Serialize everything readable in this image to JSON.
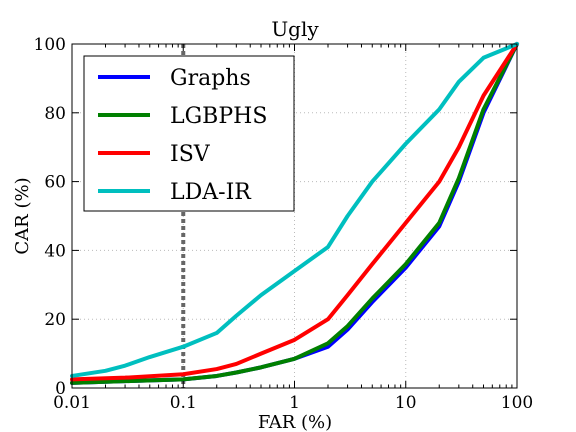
{
  "chart_data": {
    "type": "line",
    "title": "Ugly",
    "xlabel": "FAR (%)",
    "ylabel": "CAR (%)",
    "xscale": "log",
    "xlim": [
      0.01,
      100
    ],
    "ylim": [
      0,
      100
    ],
    "x_ticks": [
      0.01,
      0.1,
      1,
      10,
      100
    ],
    "x_tick_labels": [
      "0.01",
      "0.1",
      "1",
      "10",
      "100"
    ],
    "y_ticks": [
      0,
      20,
      40,
      60,
      80,
      100
    ],
    "y_tick_labels": [
      "0",
      "20",
      "40",
      "60",
      "80",
      "100"
    ],
    "grid": true,
    "legend_position": "top-left",
    "vline": {
      "x": 0.1,
      "style": "dashed",
      "color": "#666666"
    },
    "series": [
      {
        "name": "Graphs",
        "color": "#0000ff",
        "points": [
          [
            0.01,
            1.5
          ],
          [
            0.03,
            2
          ],
          [
            0.1,
            2.5
          ],
          [
            0.2,
            3.5
          ],
          [
            0.3,
            4.5
          ],
          [
            0.5,
            6
          ],
          [
            1,
            8.5
          ],
          [
            2,
            12
          ],
          [
            3,
            17
          ],
          [
            5,
            25
          ],
          [
            10,
            35
          ],
          [
            20,
            47
          ],
          [
            30,
            60
          ],
          [
            50,
            80
          ],
          [
            100,
            100
          ]
        ]
      },
      {
        "name": "LGBPHS",
        "color": "#008000",
        "points": [
          [
            0.01,
            1.5
          ],
          [
            0.03,
            2
          ],
          [
            0.1,
            2.5
          ],
          [
            0.2,
            3.5
          ],
          [
            0.3,
            4.5
          ],
          [
            0.5,
            6
          ],
          [
            1,
            8.5
          ],
          [
            2,
            13
          ],
          [
            3,
            18
          ],
          [
            5,
            26
          ],
          [
            10,
            36
          ],
          [
            20,
            48
          ],
          [
            30,
            61
          ],
          [
            50,
            81
          ],
          [
            100,
            100
          ]
        ]
      },
      {
        "name": "ISV",
        "color": "#ff0000",
        "points": [
          [
            0.01,
            2.5
          ],
          [
            0.03,
            3
          ],
          [
            0.1,
            4
          ],
          [
            0.2,
            5.5
          ],
          [
            0.3,
            7
          ],
          [
            0.5,
            10
          ],
          [
            1,
            14
          ],
          [
            2,
            20
          ],
          [
            3,
            27
          ],
          [
            5,
            36
          ],
          [
            10,
            48
          ],
          [
            20,
            60
          ],
          [
            30,
            70
          ],
          [
            50,
            85
          ],
          [
            100,
            100
          ]
        ]
      },
      {
        "name": "LDA-IR",
        "color": "#00bfbf",
        "points": [
          [
            0.01,
            3.5
          ],
          [
            0.02,
            5
          ],
          [
            0.03,
            6.5
          ],
          [
            0.05,
            9
          ],
          [
            0.1,
            12
          ],
          [
            0.2,
            16
          ],
          [
            0.3,
            21
          ],
          [
            0.5,
            27
          ],
          [
            1,
            34
          ],
          [
            2,
            41
          ],
          [
            3,
            50
          ],
          [
            5,
            60
          ],
          [
            10,
            71
          ],
          [
            20,
            81
          ],
          [
            30,
            89
          ],
          [
            50,
            96
          ],
          [
            100,
            100
          ]
        ]
      }
    ]
  }
}
